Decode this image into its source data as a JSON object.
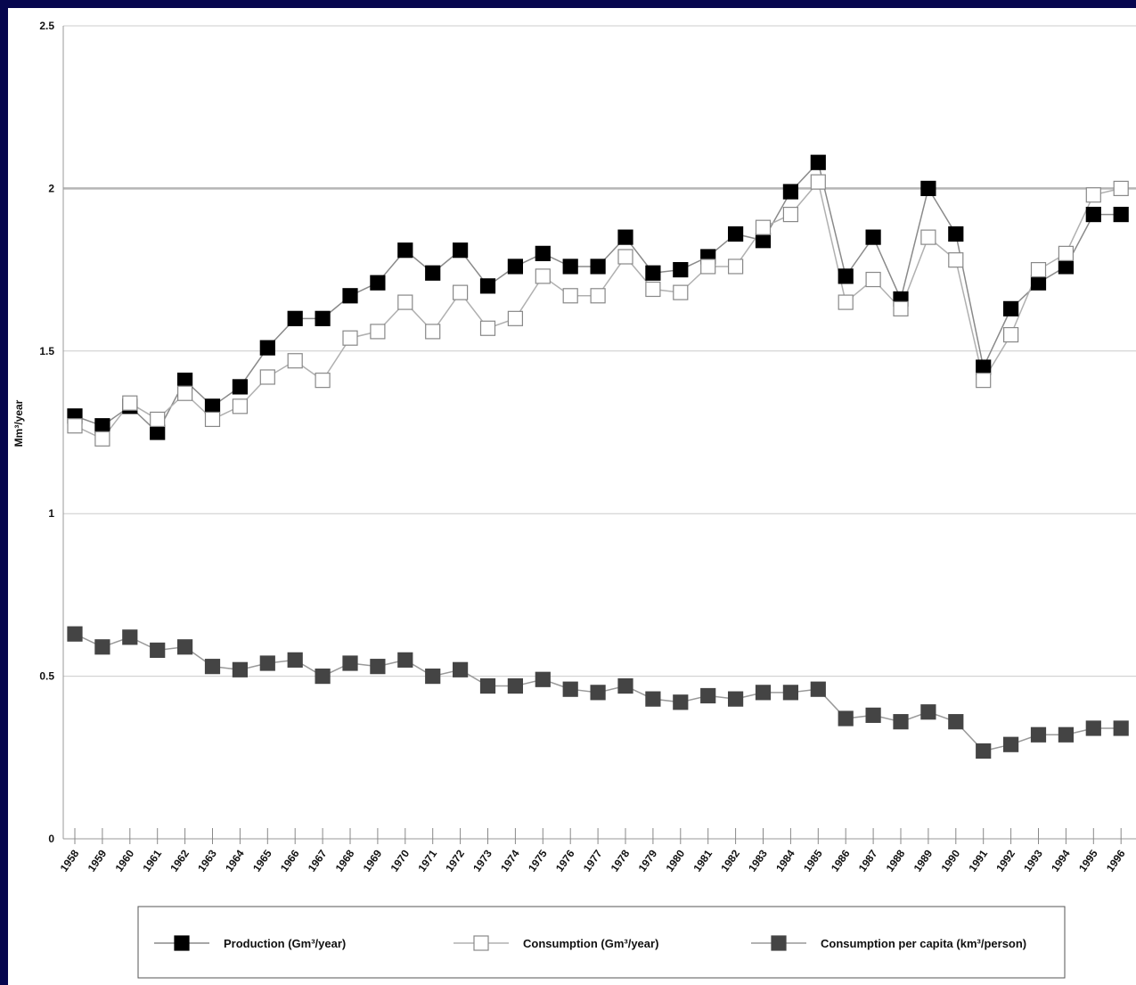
{
  "chart_data": {
    "type": "line",
    "title": "",
    "xlabel": "",
    "ylabel": "Mm³/year",
    "ylim": [
      0,
      2.5
    ],
    "y_ticks": [
      "0",
      "0.5",
      "1",
      "1.5",
      "2",
      "2.5"
    ],
    "grid": true,
    "legend_position": "bottom",
    "categories": [
      "1958",
      "1959",
      "1960",
      "1961",
      "1962",
      "1963",
      "1964",
      "1965",
      "1966",
      "1967",
      "1968",
      "1969",
      "1970",
      "1971",
      "1972",
      "1973",
      "1974",
      "1975",
      "1976",
      "1977",
      "1978",
      "1979",
      "1980",
      "1981",
      "1982",
      "1983",
      "1984",
      "1985",
      "1986",
      "1987",
      "1988",
      "1989",
      "1990",
      "1991",
      "1992",
      "1993",
      "1994",
      "1995",
      "1996"
    ],
    "series": [
      {
        "name": "Production (Gm³/year)",
        "marker": "filled-black-square",
        "color": "#000000",
        "values": [
          1.3,
          1.27,
          1.33,
          1.25,
          1.41,
          1.33,
          1.39,
          1.51,
          1.6,
          1.6,
          1.67,
          1.71,
          1.81,
          1.74,
          1.81,
          1.7,
          1.76,
          1.8,
          1.76,
          1.76,
          1.85,
          1.74,
          1.75,
          1.79,
          1.86,
          1.84,
          1.99,
          2.08,
          1.73,
          1.85,
          1.66,
          2.0,
          1.86,
          1.45,
          1.63,
          1.71,
          1.76,
          1.92,
          1.92
        ]
      },
      {
        "name": "Consumption (Gm³/year)",
        "marker": "open-white-square",
        "color": "#ffffff",
        "values": [
          1.27,
          1.23,
          1.34,
          1.29,
          1.37,
          1.29,
          1.33,
          1.42,
          1.47,
          1.41,
          1.54,
          1.56,
          1.65,
          1.56,
          1.68,
          1.57,
          1.6,
          1.73,
          1.67,
          1.67,
          1.79,
          1.69,
          1.68,
          1.76,
          1.76,
          1.88,
          1.92,
          2.02,
          1.65,
          1.72,
          1.63,
          1.85,
          1.78,
          1.41,
          1.55,
          1.75,
          1.8,
          1.98,
          2.0
        ]
      },
      {
        "name": "Consumption per capita (km³/person)",
        "marker": "filled-gray-square",
        "color": "#444444",
        "values": [
          0.63,
          0.59,
          0.62,
          0.58,
          0.59,
          0.53,
          0.52,
          0.54,
          0.55,
          0.5,
          0.54,
          0.53,
          0.55,
          0.5,
          0.52,
          0.47,
          0.47,
          0.49,
          0.46,
          0.45,
          0.47,
          0.43,
          0.42,
          0.44,
          0.43,
          0.45,
          0.45,
          0.46,
          0.37,
          0.38,
          0.36,
          0.39,
          0.36,
          0.27,
          0.29,
          0.32,
          0.32,
          0.34,
          0.34
        ]
      }
    ]
  }
}
